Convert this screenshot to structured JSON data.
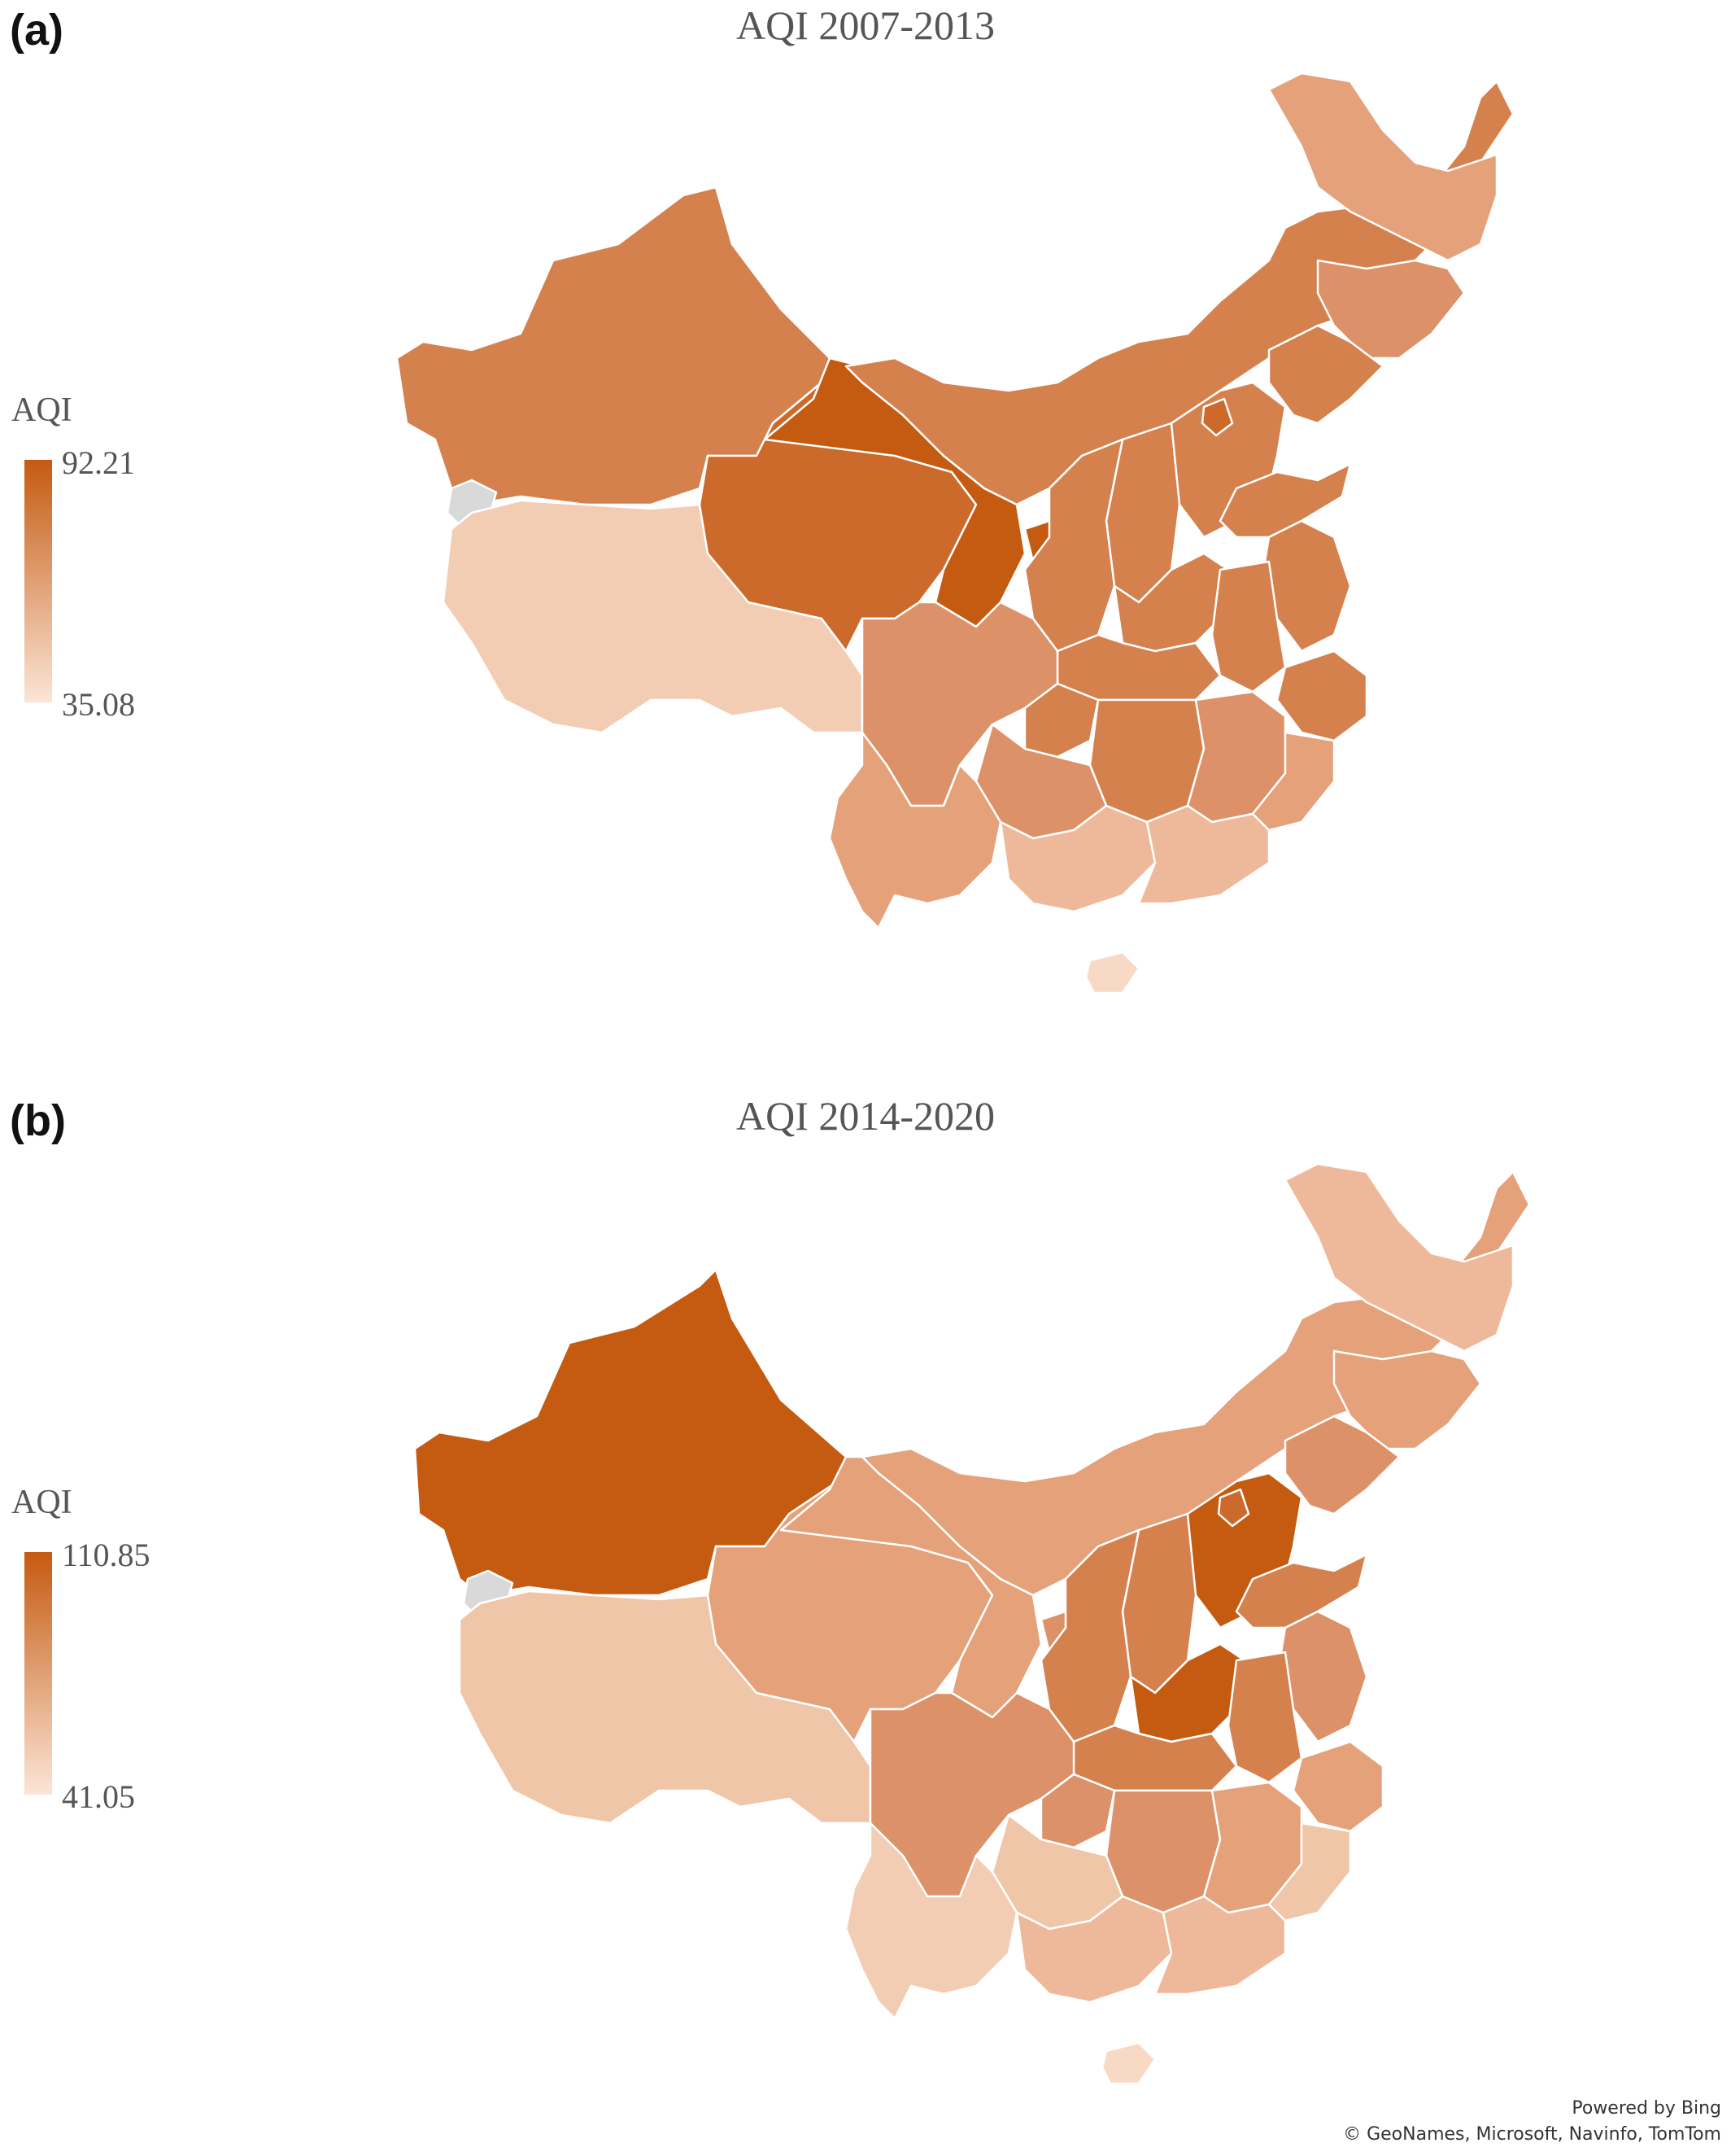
{
  "panel_a": {
    "label": "(a)",
    "title": "AQI 2007-2013",
    "legend": {
      "title": "AQI",
      "max": "92.21",
      "min": "35.08",
      "max_color": "#c55a11",
      "min_color": "#fbe5d6"
    }
  },
  "panel_b": {
    "label": "(b)",
    "title": "AQI 2014-2020",
    "legend": {
      "title": "AQI",
      "max": "110.85",
      "min": "41.05",
      "max_color": "#c55a11",
      "min_color": "#fbe5d6"
    }
  },
  "no_data_color": "#d9d9d9",
  "attribution": {
    "line1": "Powered by Bing",
    "line2": "© GeoNames, Microsoft, Navinfo, TomTom"
  }
}
